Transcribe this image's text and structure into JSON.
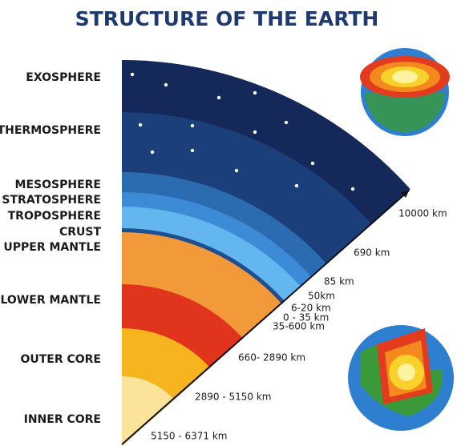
{
  "title": "STRUCTURE OF THE EARTH",
  "layers": [
    "EXOSPHERE",
    "THERMOSPHERE",
    "MESOSPHERE",
    "STRATOSPHERE",
    "TROPOSPHERE",
    "CRUST",
    "UPPER MANTLE",
    "LOWER MANTLE",
    "OUTER CORE",
    "INNER CORE"
  ],
  "depths": [
    "10000 km",
    "690 km",
    "85 km",
    "50km",
    "6-20 km",
    "0 - 35 km",
    "35-600 km",
    "660- 2890 km",
    "2890 - 5150 km",
    "5150 - 6371 km"
  ]
}
